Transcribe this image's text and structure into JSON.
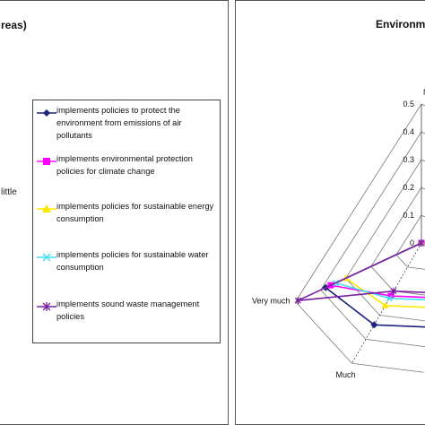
{
  "left_panel": {
    "title_fragment": "reas)",
    "stray_label": "little"
  },
  "legend": {
    "items": [
      {
        "label": "implements policies to protect the environment from emissions of air pollutants",
        "color": "#1a237e",
        "marker": "diamond"
      },
      {
        "label": "implements environmental protection policies for climate change",
        "color": "#ff00ff",
        "marker": "square"
      },
      {
        "label": "implements policies for sustainable energy consumption",
        "color": "#ffe800",
        "marker": "triangle"
      },
      {
        "label": "implements policies for sustainable water consumption",
        "color": "#40e0f0",
        "marker": "x"
      },
      {
        "label": "implements sound waste management policies",
        "color": "#7b1fa2",
        "marker": "star"
      }
    ]
  },
  "chart_data": {
    "type": "radar",
    "title": "Environme",
    "axes": [
      "Not",
      "Very much",
      "Much"
    ],
    "rlim": [
      0,
      0.5
    ],
    "ticks": [
      "0",
      "0.1",
      "0.2",
      "0.3",
      "0.4",
      "0.5"
    ],
    "grid": true,
    "series": [
      {
        "name": "implements policies to protect the environment from emissions of air pollutants",
        "color": "#1a237e",
        "values": [
          0.0,
          0.38,
          0.34
        ]
      },
      {
        "name": "implements environmental protection policies for climate change",
        "color": "#ff00ff",
        "values": [
          0.0,
          0.36,
          0.22
        ]
      },
      {
        "name": "implements policies for sustainable energy consumption",
        "color": "#ffe800",
        "values": [
          0.0,
          0.3,
          0.26
        ]
      },
      {
        "name": "implements policies for sustainable water consumption",
        "color": "#40e0f0",
        "values": [
          0.0,
          0.34,
          0.23
        ]
      },
      {
        "name": "implements sound waste management policies",
        "color": "#7b1fa2",
        "values": [
          0.0,
          0.49,
          0.2
        ]
      }
    ]
  }
}
